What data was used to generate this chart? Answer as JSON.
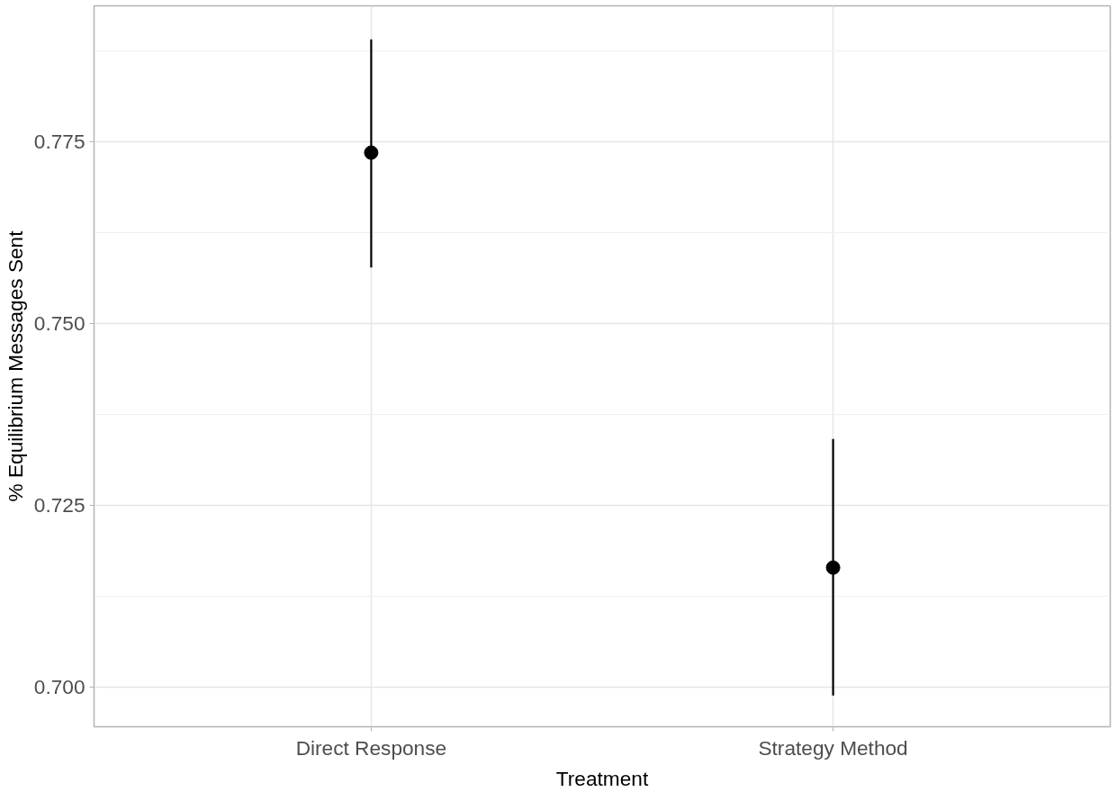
{
  "chart_data": {
    "type": "scatter",
    "xlabel": "Treatment",
    "ylabel": "% Equilibrium Messages Sent",
    "categories": [
      "Direct Response",
      "Strategy Method"
    ],
    "values": [
      0.7735,
      0.7164
    ],
    "errors": [
      [
        0.7577,
        0.7891
      ],
      [
        0.6988,
        0.7341
      ]
    ],
    "color": "#000000",
    "ylim": [
      0.6945,
      0.7937
    ],
    "yticks": [
      {
        "value": 0.7,
        "label": "0.700"
      },
      0.725,
      {
        "value": 0.75,
        "label": "0.750"
      },
      0.775
    ],
    "grid": true,
    "marker": "circle"
  }
}
